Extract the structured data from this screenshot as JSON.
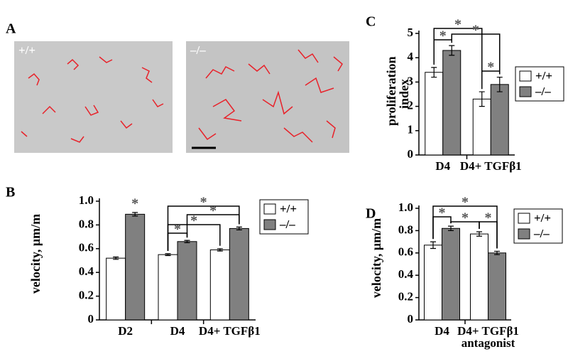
{
  "panel_a": {
    "label": "A",
    "images": [
      "+/+",
      "–/–"
    ]
  },
  "chart_data": [
    {
      "type": "bar",
      "label": "B",
      "ylabel": "velocity, μm/m",
      "categories": [
        "D2",
        "D4",
        "D4+ TGFβ1"
      ],
      "series": [
        {
          "name": "+/+",
          "color": "#ffffff",
          "values": [
            0.52,
            0.55,
            0.59
          ],
          "errors": [
            0.01,
            0.008,
            0.01
          ]
        },
        {
          "name": "–/–",
          "color": "#808080",
          "values": [
            0.89,
            0.66,
            0.77
          ],
          "errors": [
            0.015,
            0.01,
            0.012
          ]
        }
      ],
      "ylim": [
        0,
        1.0
      ],
      "yticks": [
        0,
        0.2,
        0.4,
        0.6,
        0.8,
        {
          "value": 1,
          "label": "1.0"
        }
      ],
      "annotations": [
        "*",
        "*",
        "*",
        "*",
        "*"
      ],
      "legend": "upper right"
    },
    {
      "type": "bar",
      "label": "C",
      "ylabel": "proliferation index",
      "categories": [
        "D4",
        "D4+ TGFβ1"
      ],
      "series": [
        {
          "name": "+/+",
          "color": "#ffffff",
          "values": [
            3.4,
            2.3
          ],
          "errors": [
            0.2,
            0.3
          ]
        },
        {
          "name": "–/–",
          "color": "#808080",
          "values": [
            4.3,
            2.9
          ],
          "errors": [
            0.2,
            0.3
          ]
        }
      ],
      "ylim": [
        0,
        5
      ],
      "yticks": [
        0,
        1,
        2,
        3,
        4,
        5
      ],
      "annotations": [
        "*",
        "*",
        "*",
        "*"
      ],
      "legend": "right"
    },
    {
      "type": "bar",
      "label": "D",
      "ylabel": "velocity, μm/m",
      "categories": [
        "D4",
        "D4+ TGFβ1 antagonist"
      ],
      "series": [
        {
          "name": "+/+",
          "color": "#ffffff",
          "values": [
            0.67,
            0.77
          ],
          "errors": [
            0.03,
            0.02
          ]
        },
        {
          "name": "–/–",
          "color": "#808080",
          "values": [
            0.82,
            0.6
          ],
          "errors": [
            0.02,
            0.015
          ]
        }
      ],
      "ylim": [
        0,
        1.0
      ],
      "yticks": [
        0,
        0.2,
        0.4,
        0.6,
        0.8,
        {
          "value": 1,
          "label": "1.0"
        }
      ],
      "annotations": [
        "*",
        "*",
        "*",
        "*"
      ],
      "legend": "upper right"
    }
  ]
}
